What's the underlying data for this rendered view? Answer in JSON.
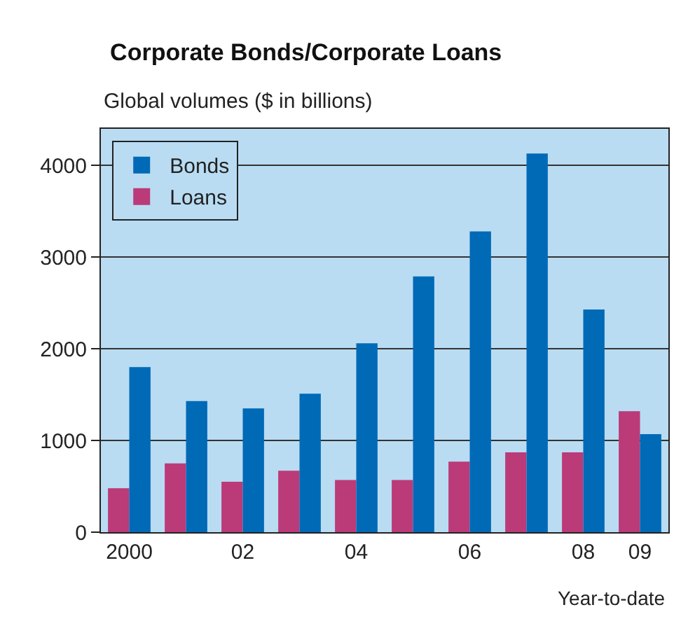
{
  "chart_data": {
    "type": "bar",
    "title": "Corporate Bonds/Corporate Loans",
    "subtitle": "Global volumes ($ in billions)",
    "xlabel": "Year-to-date",
    "categories": [
      "2000",
      null,
      "02",
      null,
      "04",
      null,
      "06",
      null,
      "08",
      "09"
    ],
    "series": [
      {
        "name": "Loans",
        "color": "#bb3a78",
        "values": [
          480,
          750,
          550,
          670,
          570,
          570,
          770,
          870,
          870,
          1320
        ]
      },
      {
        "name": "Bonds",
        "color": "#006ab7",
        "values": [
          1800,
          1430,
          1350,
          1510,
          2060,
          2790,
          3280,
          4130,
          2430,
          1070
        ]
      }
    ],
    "ylim": [
      0,
      4400
    ],
    "yticks": [
      0,
      1000,
      2000,
      3000,
      4000
    ],
    "grid": "y",
    "legend": "top left"
  }
}
